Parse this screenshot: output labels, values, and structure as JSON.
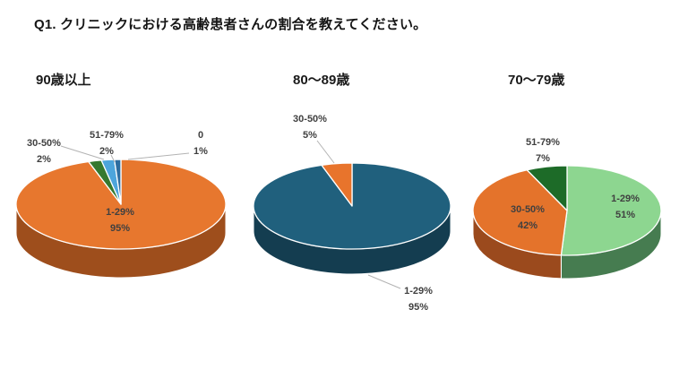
{
  "page": {
    "question_title": "Q1. クリニックにおける高齢患者さんの割合を教えてください。",
    "background_color": "#FFFFFF",
    "label_color": "#404040",
    "title_color": "#1A1A1A",
    "leader_line_color": "#B3B3B3"
  },
  "chart_data": [
    {
      "type": "pie",
      "style": "3d",
      "title": "90歳以上",
      "unit": "%",
      "legend_position": "none",
      "slices": [
        {
          "label": "1-29%",
          "value": 95,
          "value_text": "95%",
          "color": "#E7772E",
          "side_color": "#9E4E1C",
          "label_placement": "inside"
        },
        {
          "label": "30-50%",
          "value": 2,
          "value_text": "2%",
          "color": "#35792F",
          "side_color": "#1F4A1C",
          "label_placement": "outside"
        },
        {
          "label": "51-79%",
          "value": 2,
          "value_text": "2%",
          "color": "#4DA5DC",
          "side_color": "#2F6A93",
          "label_placement": "outside"
        },
        {
          "label": "0",
          "value": 1,
          "value_text": "1%",
          "color": "#2D6DA0",
          "side_color": "#1B4263",
          "label_placement": "outside"
        }
      ]
    },
    {
      "type": "pie",
      "style": "3d",
      "title": "80～89歳",
      "unit": "%",
      "legend_position": "none",
      "slices": [
        {
          "label": "1-29%",
          "value": 95,
          "value_text": "95%",
          "color": "#20607D",
          "side_color": "#143D50",
          "label_placement": "outside"
        },
        {
          "label": "30-50%",
          "value": 5,
          "value_text": "5%",
          "color": "#E8742C",
          "side_color": "#9E4E1C",
          "label_placement": "outside"
        }
      ]
    },
    {
      "type": "pie",
      "style": "3d",
      "title": "70～79歳",
      "unit": "%",
      "legend_position": "none",
      "slices": [
        {
          "label": "1-29%",
          "value": 51,
          "value_text": "51%",
          "color": "#8DD690",
          "side_color": "#467C50",
          "label_placement": "inside"
        },
        {
          "label": "30-50%",
          "value": 42,
          "value_text": "42%",
          "color": "#E4732B",
          "side_color": "#9B4A1D",
          "label_placement": "inside"
        },
        {
          "label": "51-79%",
          "value": 7,
          "value_text": "7%",
          "color": "#1D6B28",
          "side_color": "#154519",
          "label_placement": "outside"
        }
      ]
    }
  ]
}
